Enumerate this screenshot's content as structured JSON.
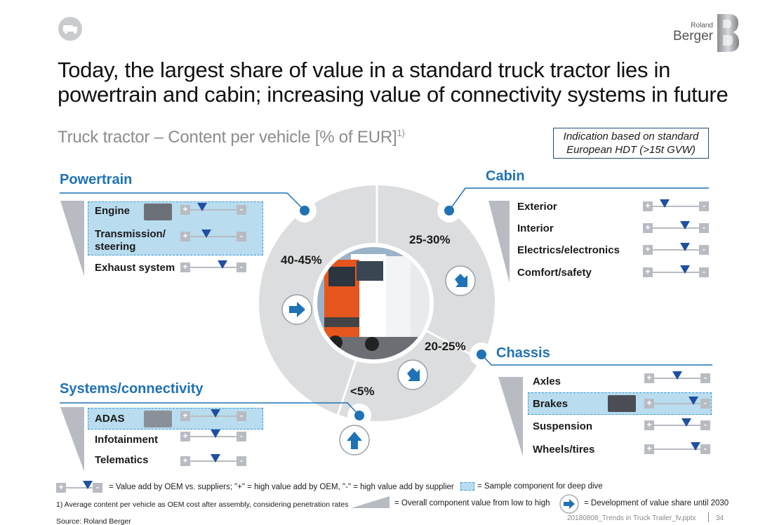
{
  "header": {
    "logo_small": "Roland",
    "logo_big": "Berger",
    "title_line1": "Today, the largest share of value in a standard truck tractor lies in",
    "title_line2": "powertrain and cabin; increasing value of connectivity systems in future",
    "subtitle": "Truck tractor – Content per vehicle [% of EUR]",
    "subtitle_sup": "1)",
    "indication_line1": "Indication based on standard",
    "indication_line2": "European HDT (>15t GVW)"
  },
  "sections": {
    "powertrain": {
      "title": "Powertrain",
      "items": [
        {
          "label": "Engine",
          "value_add": 0.25,
          "deep_dive": true
        },
        {
          "label": "Transmission/",
          "label2": "steering",
          "value_add": 0.35,
          "deep_dive": true
        },
        {
          "label": "Exhaust system",
          "value_add": 0.7,
          "deep_dive": false
        }
      ]
    },
    "cabin": {
      "title": "Cabin",
      "items": [
        {
          "label": "Exterior",
          "value_add": 0.25
        },
        {
          "label": "Interior",
          "value_add": 0.7
        },
        {
          "label": "Electrics/electronics",
          "value_add": 0.7
        },
        {
          "label": "Comfort/safety",
          "value_add": 0.7
        }
      ]
    },
    "chassis": {
      "title": "Chassis",
      "items": [
        {
          "label": "Axles",
          "value_add": 0.5,
          "deep_dive": false
        },
        {
          "label": "Brakes",
          "value_add": 0.85,
          "deep_dive": true
        },
        {
          "label": "Suspension",
          "value_add": 0.7,
          "deep_dive": false
        },
        {
          "label": "Wheels/tires",
          "value_add": 0.9,
          "deep_dive": false
        }
      ]
    },
    "systems": {
      "title": "Systems/connectivity",
      "items": [
        {
          "label": "ADAS",
          "value_add": 0.55,
          "deep_dive": true
        },
        {
          "label": "Infotainment",
          "value_add": 0.55,
          "deep_dive": false
        },
        {
          "label": "Telematics",
          "value_add": 0.55,
          "deep_dive": false
        }
      ]
    }
  },
  "shares": {
    "powertrain": "40-45%",
    "cabin": "25-30%",
    "chassis": "20-25%",
    "systems": "<5%"
  },
  "legend": {
    "slider_text": "= Value add by OEM vs. suppliers; \"+\" = high value add by OEM, \"-\" = high value add by supplier",
    "deep_dive_text": "= Sample component for deep dive",
    "wedge_text": "= Overall component value from low to high",
    "arrow_text": "= Development of value share until 2030",
    "plus": "+",
    "minus": "-"
  },
  "footer": {
    "footnote": "1) Average content per vehicle as OEM cost after assembly, considering penetration rates",
    "source": "Source: Roland Berger",
    "file": "20180808_Trends in Truck Trailer_fv.pptx",
    "page": "34"
  },
  "colors": {
    "accent_blue": "#1f72b5",
    "slider_tri": "#1f4fa0",
    "highlight": "#b9dcef",
    "circle_gray": "#dcdddf",
    "wedge_gray": "#b8bcc2"
  }
}
